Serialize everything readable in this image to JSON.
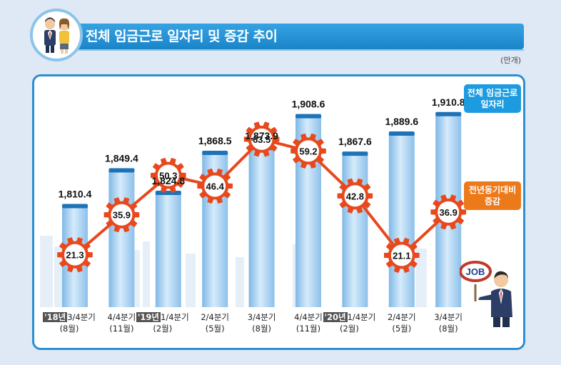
{
  "title": "전체 임금근로 일자리 및 증감 추이",
  "unit": "(만개)",
  "legend": {
    "total_label_1": "전체 임금근로",
    "total_label_2": "일자리",
    "yoy_label_1": "전년동기대비",
    "yoy_label_2": "증감"
  },
  "job_sign": "JOB",
  "colors": {
    "title_bar": "#1a84c9",
    "bar": "#a9d0f0",
    "bar_cap": "#1e73b8",
    "line": "#e8481c",
    "gear": "#e8481c",
    "callout_total": "#1d9be0",
    "callout_yoy": "#ec7a1b"
  },
  "icons": [
    "people-icon",
    "job-sign-person-icon",
    "city-skyline-icon",
    "gear-icon"
  ],
  "xaxis": [
    {
      "year": "'18년",
      "quarter": "3/4분기",
      "month": "(8월)"
    },
    {
      "year": "",
      "quarter": "4/4분기",
      "month": "(11월)"
    },
    {
      "year": "'19년",
      "quarter": "1/4분기",
      "month": "(2월)"
    },
    {
      "year": "",
      "quarter": "2/4분기",
      "month": "(5월)"
    },
    {
      "year": "",
      "quarter": "3/4분기",
      "month": "(8월)"
    },
    {
      "year": "",
      "quarter": "4/4분기",
      "month": "(11월)"
    },
    {
      "year": "'20년",
      "quarter": "1/4분기",
      "month": "(2월)"
    },
    {
      "year": "",
      "quarter": "2/4분기",
      "month": "(5월)"
    },
    {
      "year": "",
      "quarter": "3/4분기",
      "month": "(8월)"
    }
  ],
  "chart_data": {
    "type": "bar",
    "categories": [
      "'18년 3/4분기(8월)",
      "4/4분기(11월)",
      "'19년 1/4분기(2월)",
      "2/4분기(5월)",
      "3/4분기(8월)",
      "4/4분기(11월)",
      "'20년 1/4분기(2월)",
      "2/4분기(5월)",
      "3/4분기(8월)"
    ],
    "series": [
      {
        "name": "전체 임금근로 일자리",
        "type": "bar",
        "values": [
          1810.4,
          1849.4,
          1824.8,
          1868.5,
          1873.9,
          1908.6,
          1867.6,
          1889.6,
          1910.8
        ],
        "labels": [
          "1,810.4",
          "1,849.4",
          "1,824.8",
          "1,868.5",
          "1,873.9",
          "1,908.6",
          "1,867.6",
          "1,889.6",
          "1,910.8"
        ]
      },
      {
        "name": "전년동기대비 증감",
        "type": "line",
        "values": [
          21.3,
          35.9,
          50.3,
          46.4,
          63.5,
          59.2,
          42.8,
          21.1,
          36.9
        ],
        "labels": [
          "21.3",
          "35.9",
          "50.3",
          "46.4",
          "63.5",
          "59.2",
          "42.8",
          "21.1",
          "36.9"
        ]
      }
    ],
    "title": "전체 임금근로 일자리 및 증감 추이",
    "unit": "(만개)",
    "bar_ylim": [
      1700,
      1920
    ],
    "line_ylim": [
      10,
      70
    ],
    "grid": false,
    "legend": "right"
  }
}
